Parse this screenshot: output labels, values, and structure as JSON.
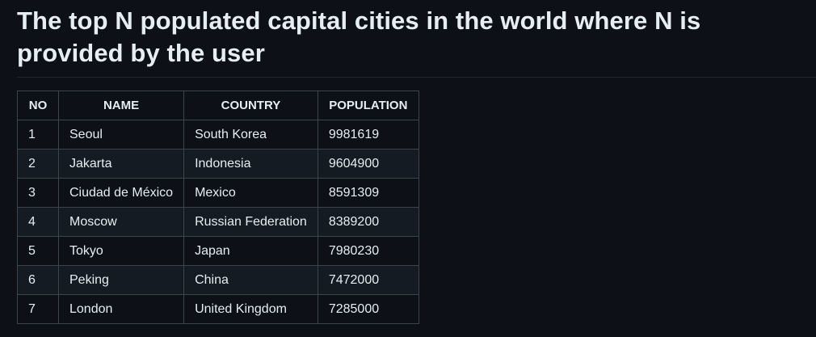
{
  "heading": "The top N populated capital cities in the world where N is provided by the user",
  "table": {
    "headers": [
      "NO",
      "NAME",
      "COUNTRY",
      "POPULATION"
    ],
    "rows": [
      [
        "1",
        "Seoul",
        "South Korea",
        "9981619"
      ],
      [
        "2",
        "Jakarta",
        "Indonesia",
        "9604900"
      ],
      [
        "3",
        "Ciudad de México",
        "Mexico",
        "8591309"
      ],
      [
        "4",
        "Moscow",
        "Russian Federation",
        "8389200"
      ],
      [
        "5",
        "Tokyo",
        "Japan",
        "7980230"
      ],
      [
        "6",
        "Peking",
        "China",
        "7472000"
      ],
      [
        "7",
        "London",
        "United Kingdom",
        "7285000"
      ]
    ]
  },
  "colors": {
    "background": "#0d1117",
    "text": "#e6edf3",
    "border": "#3d444d",
    "stripe": "#151b23"
  }
}
